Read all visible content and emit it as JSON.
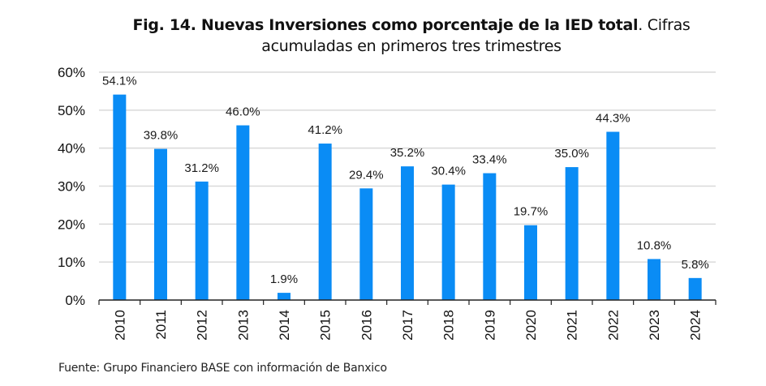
{
  "chart_data": {
    "type": "bar",
    "title_bold": "Fig. 14. Nuevas Inversiones como porcentaje de la IED total",
    "title_rest_line1": ". Cifras",
    "title_line2": "acumuladas en primeros tres trimestres",
    "xlabel": "",
    "ylabel": "",
    "categories": [
      "2010",
      "2011",
      "2012",
      "2013",
      "2014",
      "2015",
      "2016",
      "2017",
      "2018",
      "2019",
      "2020",
      "2021",
      "2022",
      "2023",
      "2024"
    ],
    "values": [
      54.1,
      39.8,
      31.2,
      46.0,
      1.9,
      41.2,
      29.4,
      35.2,
      30.4,
      33.4,
      19.7,
      35.0,
      44.3,
      10.8,
      5.8
    ],
    "data_labels": [
      "54.1%",
      "39.8%",
      "31.2%",
      "46.0%",
      "1.9%",
      "41.2%",
      "29.4%",
      "35.2%",
      "30.4%",
      "33.4%",
      "19.7%",
      "35.0%",
      "44.3%",
      "10.8%",
      "5.8%"
    ],
    "ylim": [
      0,
      60
    ],
    "yticks": [
      0,
      10,
      20,
      30,
      40,
      50,
      60
    ],
    "ytick_labels": [
      "0%",
      "10%",
      "20%",
      "30%",
      "40%",
      "50%",
      "60%"
    ],
    "grid": true,
    "bar_color": "#0A8CF5",
    "grid_color": "#d9d9d9",
    "legend": "none"
  },
  "footer": {
    "source": "Fuente: Grupo Financiero BASE con información de Banxico"
  }
}
